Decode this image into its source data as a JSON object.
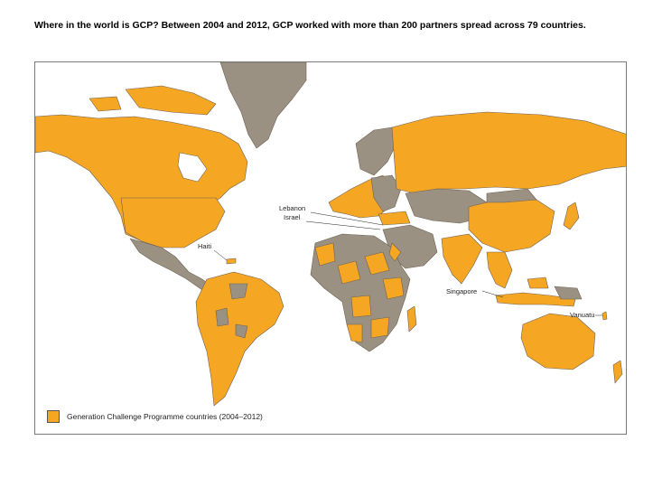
{
  "title": "Where in the world is GCP? Between 2004 and 2012, GCP worked with more than 200  partners spread across 79 countries.",
  "colors": {
    "partner": "#f5a623",
    "other": "#9b9182",
    "border": "#6d6254",
    "frame": "#7a7a7a"
  },
  "labels": {
    "lebanon": "Lebanon",
    "israel": "Israel",
    "haiti": "Haiti",
    "singapore": "Singapore",
    "vanuatu": "Vanuatu"
  },
  "legend": {
    "label": "Generation Challenge Programme countries (2004–2012)"
  }
}
